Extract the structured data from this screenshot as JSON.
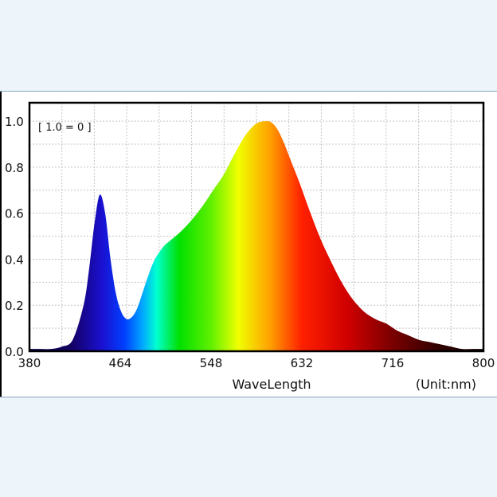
{
  "chart_data": {
    "type": "area",
    "title": "",
    "xlabel": "WaveLength",
    "unit_label": "(Unit:nm)",
    "ylabel": "",
    "annotation": "[ 1.0 = 0 ]",
    "xlim": [
      380,
      800
    ],
    "ylim": [
      0,
      1.08
    ],
    "x_ticks": [
      380,
      464,
      548,
      632,
      716,
      800
    ],
    "y_ticks": [
      0.0,
      0.2,
      0.4,
      0.6,
      0.8,
      1.0
    ],
    "x_tick_labels": [
      "380",
      "464",
      "548",
      "632",
      "716",
      "800"
    ],
    "y_tick_labels": [
      "0.0",
      "0.2",
      "0.4",
      "0.6",
      "0.8",
      "1.0"
    ],
    "grid": true,
    "fill": "visible-spectrum gradient",
    "x": [
      380,
      390,
      400,
      410,
      420,
      430,
      435,
      440,
      445,
      450,
      455,
      460,
      465,
      470,
      475,
      480,
      485,
      490,
      495,
      500,
      505,
      510,
      520,
      530,
      540,
      550,
      560,
      570,
      580,
      590,
      600,
      605,
      610,
      615,
      620,
      625,
      630,
      640,
      650,
      660,
      670,
      680,
      690,
      700,
      710,
      720,
      730,
      740,
      750,
      760,
      770,
      780,
      790,
      800
    ],
    "values": [
      0.01,
      0.01,
      0.01,
      0.02,
      0.05,
      0.2,
      0.35,
      0.55,
      0.68,
      0.6,
      0.4,
      0.25,
      0.17,
      0.14,
      0.15,
      0.19,
      0.26,
      0.33,
      0.39,
      0.43,
      0.46,
      0.48,
      0.52,
      0.57,
      0.63,
      0.7,
      0.77,
      0.86,
      0.94,
      0.99,
      1.0,
      0.99,
      0.96,
      0.91,
      0.85,
      0.79,
      0.73,
      0.6,
      0.48,
      0.38,
      0.29,
      0.22,
      0.17,
      0.14,
      0.12,
      0.09,
      0.07,
      0.05,
      0.04,
      0.03,
      0.02,
      0.01,
      0.01,
      0.01
    ]
  }
}
